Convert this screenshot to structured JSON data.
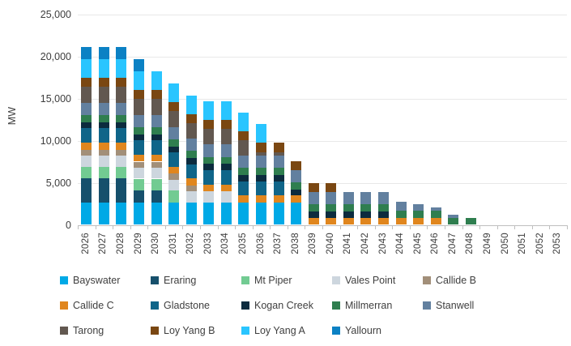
{
  "chart_data": {
    "type": "bar",
    "stacked": true,
    "title": "",
    "xlabel": "",
    "ylabel": "MW",
    "ylim": [
      0,
      25000
    ],
    "yticks": [
      0,
      5000,
      10000,
      15000,
      20000,
      25000
    ],
    "ytick_labels": [
      "0",
      "5,000",
      "10,000",
      "15,000",
      "20,000",
      "25,000"
    ],
    "grid": true,
    "legend_position": "bottom",
    "background_color": "#ffffff",
    "gridline_color": "#e8e8e8",
    "axis_line_color": "#bfbfbf",
    "axis_text_color": "#3d3d3d",
    "categories": [
      "2026",
      "2027",
      "2028",
      "2029",
      "2030",
      "2031",
      "2032",
      "2033",
      "2034",
      "2035",
      "2036",
      "2037",
      "2038",
      "2039",
      "2040",
      "2041",
      "2042",
      "2043",
      "2044",
      "2045",
      "2046",
      "2047",
      "2048",
      "2049",
      "2050",
      "2051",
      "2052",
      "2053"
    ],
    "series": [
      {
        "name": "Bayswater",
        "color": "#00A9E6",
        "values": [
          2640,
          2640,
          2640,
          2640,
          2640,
          2640,
          2640,
          2640,
          2640,
          2640,
          2640,
          2640,
          2640,
          0,
          0,
          0,
          0,
          0,
          0,
          0,
          0,
          0,
          0,
          0,
          0,
          0,
          0,
          0
        ]
      },
      {
        "name": "Eraring",
        "color": "#16506C",
        "values": [
          2880,
          2880,
          2880,
          1440,
          1440,
          0,
          0,
          0,
          0,
          0,
          0,
          0,
          0,
          0,
          0,
          0,
          0,
          0,
          0,
          0,
          0,
          0,
          0,
          0,
          0,
          0,
          0,
          0
        ]
      },
      {
        "name": "Mt Piper",
        "color": "#72CB92",
        "values": [
          1400,
          1400,
          1400,
          1400,
          1400,
          1400,
          0,
          0,
          0,
          0,
          0,
          0,
          0,
          0,
          0,
          0,
          0,
          0,
          0,
          0,
          0,
          0,
          0,
          0,
          0,
          0,
          0,
          0
        ]
      },
      {
        "name": "Vales Point",
        "color": "#CDD6DE",
        "values": [
          1320,
          1320,
          1320,
          1320,
          1320,
          1320,
          1320,
          1320,
          1320,
          0,
          0,
          0,
          0,
          0,
          0,
          0,
          0,
          0,
          0,
          0,
          0,
          0,
          0,
          0,
          0,
          0,
          0,
          0
        ]
      },
      {
        "name": "Callide B",
        "color": "#A28F79",
        "values": [
          700,
          700,
          700,
          700,
          700,
          700,
          700,
          0,
          0,
          0,
          0,
          0,
          0,
          0,
          0,
          0,
          0,
          0,
          0,
          0,
          0,
          0,
          0,
          0,
          0,
          0,
          0,
          0
        ]
      },
      {
        "name": "Callide C",
        "color": "#E0861E",
        "values": [
          825,
          825,
          825,
          825,
          825,
          825,
          825,
          825,
          825,
          825,
          825,
          825,
          825,
          825,
          825,
          825,
          825,
          825,
          825,
          825,
          825,
          0,
          0,
          0,
          0,
          0,
          0,
          0
        ]
      },
      {
        "name": "Gladstone",
        "color": "#0F6589",
        "values": [
          1680,
          1680,
          1680,
          1680,
          1680,
          1680,
          1680,
          1680,
          1680,
          1680,
          1680,
          1680,
          0,
          0,
          0,
          0,
          0,
          0,
          0,
          0,
          0,
          0,
          0,
          0,
          0,
          0,
          0,
          0
        ]
      },
      {
        "name": "Kogan Creek",
        "color": "#0C2B3E",
        "values": [
          750,
          750,
          750,
          750,
          750,
          750,
          750,
          750,
          750,
          750,
          750,
          750,
          750,
          750,
          750,
          750,
          750,
          750,
          0,
          0,
          0,
          0,
          0,
          0,
          0,
          0,
          0,
          0
        ]
      },
      {
        "name": "Millmerran",
        "color": "#2F7E4F",
        "values": [
          850,
          850,
          850,
          850,
          850,
          850,
          850,
          850,
          850,
          850,
          850,
          850,
          850,
          850,
          850,
          850,
          850,
          850,
          850,
          850,
          850,
          850,
          850,
          0,
          0,
          0,
          0,
          0
        ]
      },
      {
        "name": "Stanwell",
        "color": "#62809F",
        "values": [
          1460,
          1460,
          1460,
          1460,
          1460,
          1460,
          1460,
          1460,
          1460,
          1460,
          1460,
          1460,
          1460,
          1460,
          1460,
          1460,
          1460,
          1460,
          1095,
          730,
          365,
          365,
          0,
          0,
          0,
          0,
          0,
          0
        ]
      },
      {
        "name": "Tarong",
        "color": "#625850",
        "values": [
          1843,
          1843,
          1843,
          1843,
          1843,
          1843,
          1843,
          1843,
          1843,
          1843,
          443,
          443,
          0,
          0,
          0,
          0,
          0,
          0,
          0,
          0,
          0,
          0,
          0,
          0,
          0,
          0,
          0,
          0
        ]
      },
      {
        "name": "Loy Yang B",
        "color": "#7A4712",
        "values": [
          1070,
          1070,
          1070,
          1070,
          1070,
          1070,
          1070,
          1070,
          1070,
          1070,
          1070,
          1070,
          1070,
          1070,
          1070,
          0,
          0,
          0,
          0,
          0,
          0,
          0,
          0,
          0,
          0,
          0,
          0,
          0
        ]
      },
      {
        "name": "Loy Yang A",
        "color": "#29C5FF",
        "values": [
          2210,
          2210,
          2210,
          2210,
          2210,
          2210,
          2210,
          2210,
          2210,
          2210,
          2210,
          0,
          0,
          0,
          0,
          0,
          0,
          0,
          0,
          0,
          0,
          0,
          0,
          0,
          0,
          0,
          0,
          0
        ]
      },
      {
        "name": "Yallourn",
        "color": "#0B81C4",
        "values": [
          1480,
          1480,
          1480,
          1480,
          0,
          0,
          0,
          0,
          0,
          0,
          0,
          0,
          0,
          0,
          0,
          0,
          0,
          0,
          0,
          0,
          0,
          0,
          0,
          0,
          0,
          0,
          0,
          0
        ]
      }
    ]
  }
}
